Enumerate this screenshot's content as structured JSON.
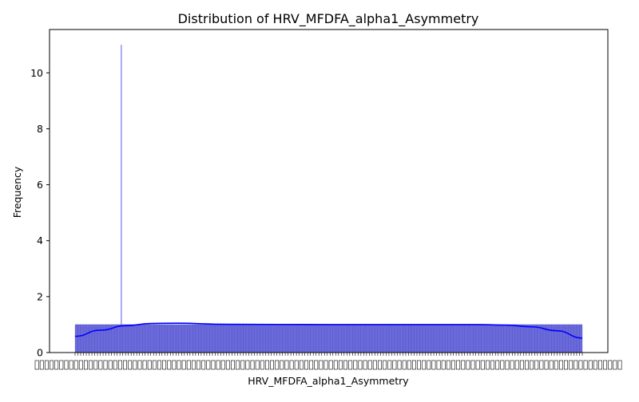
{
  "chart_data": {
    "type": "bar",
    "title": "Distribution of HRV_MFDFA_alpha1_Asymmetry",
    "xlabel": "HRV_MFDFA_alpha1_Asymmetry",
    "ylabel": "Frequency",
    "ylim": [
      0,
      11.55
    ],
    "y_ticks": [
      0,
      2,
      4,
      6,
      8,
      10
    ],
    "bin_count": 181,
    "spike": {
      "bin_index": 16,
      "value": 11
    },
    "base_bin_value": 1,
    "kde_curve": {
      "x_fraction": [
        0,
        0.05,
        0.1,
        0.15,
        0.2,
        0.3,
        0.5,
        0.7,
        0.8,
        0.85,
        0.9,
        0.95,
        1.0
      ],
      "y": [
        0.58,
        0.8,
        0.96,
        1.04,
        1.05,
        1.01,
        1.0,
        1.0,
        1.0,
        0.98,
        0.92,
        0.78,
        0.52
      ]
    },
    "grid": false,
    "colors": {
      "bar_fill": "#6a6ad8",
      "bar_edge": "#4a4ad0",
      "spike": "#5a5ae0",
      "kde": "#0000ff"
    }
  }
}
